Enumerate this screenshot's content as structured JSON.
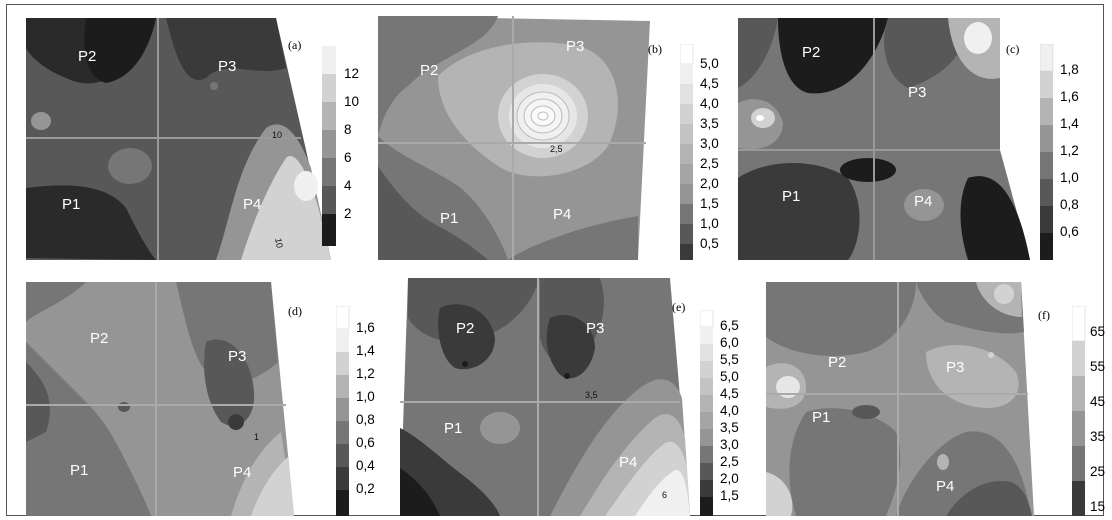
{
  "panels": [
    {
      "id": "a",
      "letter": "(a)",
      "plots": [
        "P1",
        "P2",
        "P3",
        "P4"
      ],
      "legend_ticks": [
        "12",
        "10",
        "8",
        "6",
        "4",
        "2"
      ],
      "contour_labels": [
        "10",
        "10"
      ]
    },
    {
      "id": "b",
      "letter": "(b)",
      "plots": [
        "P1",
        "P2",
        "P3",
        "P4"
      ],
      "legend_ticks": [
        "5,0",
        "4,5",
        "4,0",
        "3,5",
        "3,0",
        "2,5",
        "2,0",
        "1,5",
        "1,0",
        "0,5"
      ],
      "contour_labels": [
        "2,5"
      ]
    },
    {
      "id": "c",
      "letter": "(c)",
      "plots": [
        "P1",
        "P2",
        "P3",
        "P4"
      ],
      "legend_ticks": [
        "1,8",
        "1,6",
        "1,4",
        "1,2",
        "1,0",
        "0,8",
        "0,6"
      ],
      "contour_labels": []
    },
    {
      "id": "d",
      "letter": "(d)",
      "plots": [
        "P1",
        "P2",
        "P3",
        "P4"
      ],
      "legend_ticks": [
        "1,6",
        "1,4",
        "1,2",
        "1,0",
        "0,8",
        "0,6",
        "0,4",
        "0,2"
      ],
      "contour_labels": [
        "1"
      ]
    },
    {
      "id": "e",
      "letter": "(e)",
      "plots": [
        "P1",
        "P2",
        "P3",
        "P4"
      ],
      "legend_ticks": [
        "6,5",
        "6,0",
        "5,5",
        "5,0",
        "4,5",
        "4,0",
        "3,5",
        "3,0",
        "2,5",
        "2,0",
        "1,5"
      ],
      "contour_labels": [
        "3,5",
        "6"
      ]
    },
    {
      "id": "f",
      "letter": "(f)",
      "plots": [
        "P1",
        "P2",
        "P3",
        "P4"
      ],
      "legend_ticks": [
        "65",
        "55",
        "45",
        "35",
        "25",
        "15"
      ],
      "contour_labels": []
    }
  ],
  "colors": {
    "darkest": "#1c1c1c",
    "dark": "#3a3a3a",
    "mid_dark": "#585858",
    "mid": "#767676",
    "mid_light": "#959595",
    "light": "#b4b4b4",
    "lighter": "#d2d2d2",
    "lightest": "#f0f0f0"
  }
}
